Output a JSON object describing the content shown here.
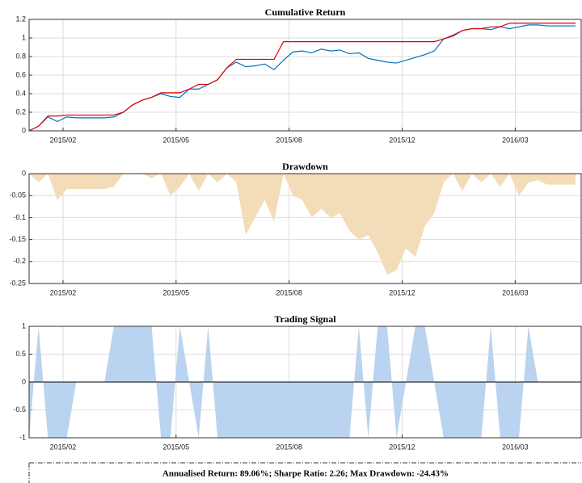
{
  "chart_data": [
    {
      "type": "line",
      "title": "Cumulative Return",
      "x": [
        0,
        5,
        10,
        15,
        20,
        25,
        30,
        35,
        40,
        45,
        50,
        55,
        60,
        65,
        70,
        75,
        80,
        85,
        90,
        95,
        100,
        105,
        110,
        115,
        120,
        125,
        130,
        135,
        140,
        145,
        150,
        155,
        160,
        165,
        170,
        175,
        180,
        185,
        190,
        195,
        200,
        205,
        210,
        215,
        220,
        225,
        230,
        235,
        240,
        245,
        250,
        255,
        260,
        265,
        270,
        275,
        280,
        285,
        290
      ],
      "xlim": [
        0,
        293
      ],
      "xticks": [
        {
          "value": 18,
          "label": "2015/02"
        },
        {
          "value": 78,
          "label": "2015/05"
        },
        {
          "value": 138,
          "label": "2015/08"
        },
        {
          "value": 198,
          "label": "2015/12"
        },
        {
          "value": 258,
          "label": "2016/03"
        }
      ],
      "ylim": [
        0,
        1.2
      ],
      "yticks": [
        0,
        0.2,
        0.4,
        0.6,
        0.8,
        1,
        1.2
      ],
      "grid": true,
      "series": [
        {
          "color": "#0072bd",
          "values": [
            0,
            0.05,
            0.15,
            0.1,
            0.15,
            0.14,
            0.14,
            0.14,
            0.14,
            0.15,
            0.2,
            0.28,
            0.33,
            0.36,
            0.4,
            0.37,
            0.36,
            0.45,
            0.45,
            0.5,
            0.55,
            0.68,
            0.74,
            0.69,
            0.7,
            0.72,
            0.66,
            0.76,
            0.85,
            0.86,
            0.84,
            0.88,
            0.86,
            0.87,
            0.83,
            0.84,
            0.78,
            0.76,
            0.74,
            0.73,
            0.76,
            0.79,
            0.82,
            0.86,
            0.99,
            1.02,
            1.08,
            1.1,
            1.1,
            1.09,
            1.12,
            1.1,
            1.12,
            1.14,
            1.14,
            1.13,
            1.13,
            1.13,
            1.13
          ]
        },
        {
          "color": "#e00000",
          "values": [
            0,
            0.05,
            0.16,
            0.16,
            0.17,
            0.17,
            0.17,
            0.17,
            0.17,
            0.17,
            0.2,
            0.28,
            0.33,
            0.36,
            0.41,
            0.41,
            0.41,
            0.45,
            0.5,
            0.5,
            0.55,
            0.68,
            0.77,
            0.77,
            0.77,
            0.77,
            0.77,
            0.96,
            0.96,
            0.96,
            0.96,
            0.96,
            0.96,
            0.96,
            0.96,
            0.96,
            0.96,
            0.96,
            0.96,
            0.96,
            0.96,
            0.96,
            0.96,
            0.96,
            0.99,
            1.03,
            1.08,
            1.1,
            1.1,
            1.12,
            1.12,
            1.16,
            1.16,
            1.16,
            1.16,
            1.16,
            1.16,
            1.16,
            1.16
          ]
        }
      ]
    },
    {
      "type": "area",
      "title": "Drawdown",
      "x": [
        0,
        5,
        10,
        15,
        20,
        25,
        30,
        35,
        40,
        45,
        50,
        55,
        60,
        65,
        70,
        75,
        80,
        85,
        90,
        95,
        100,
        105,
        110,
        115,
        120,
        125,
        130,
        135,
        140,
        145,
        150,
        155,
        160,
        165,
        170,
        175,
        180,
        185,
        190,
        195,
        200,
        205,
        210,
        215,
        220,
        225,
        230,
        235,
        240,
        245,
        250,
        255,
        260,
        265,
        270,
        275,
        280,
        285,
        290
      ],
      "xlim": [
        0,
        293
      ],
      "xticks": [
        {
          "value": 18,
          "label": "2015/02"
        },
        {
          "value": 78,
          "label": "2015/05"
        },
        {
          "value": 138,
          "label": "2015/08"
        },
        {
          "value": 198,
          "label": "2015/12"
        },
        {
          "value": 258,
          "label": "2016/03"
        }
      ],
      "ylim": [
        -0.25,
        0
      ],
      "yticks": [
        -0.25,
        -0.2,
        -0.15,
        -0.1,
        -0.05,
        0
      ],
      "grid": true,
      "color": "#f3ddb9",
      "values": [
        0,
        -0.02,
        0,
        -0.06,
        -0.035,
        -0.035,
        -0.035,
        -0.035,
        -0.035,
        -0.03,
        0,
        0,
        0,
        -0.01,
        0,
        -0.05,
        -0.03,
        0,
        -0.04,
        0,
        -0.02,
        0,
        -0.02,
        -0.14,
        -0.1,
        -0.06,
        -0.11,
        0,
        -0.05,
        -0.06,
        -0.1,
        -0.08,
        -0.1,
        -0.09,
        -0.13,
        -0.15,
        -0.14,
        -0.18,
        -0.23,
        -0.22,
        -0.17,
        -0.19,
        -0.12,
        -0.09,
        -0.02,
        0,
        -0.04,
        0,
        -0.02,
        0,
        -0.03,
        0,
        -0.05,
        -0.02,
        -0.015,
        -0.025,
        -0.025,
        -0.025,
        -0.025
      ]
    },
    {
      "type": "area",
      "title": "Trading Signal",
      "x": [
        0,
        5,
        10,
        15,
        20,
        25,
        30,
        35,
        40,
        45,
        50,
        55,
        60,
        65,
        70,
        75,
        80,
        85,
        90,
        95,
        100,
        105,
        110,
        115,
        120,
        125,
        130,
        135,
        140,
        145,
        150,
        155,
        160,
        165,
        170,
        175,
        180,
        185,
        190,
        195,
        200,
        205,
        210,
        215,
        220,
        225,
        230,
        235,
        240,
        245,
        250,
        255,
        260,
        265,
        270,
        275,
        280,
        285,
        290
      ],
      "xlim": [
        0,
        293
      ],
      "xticks": [
        {
          "value": 18,
          "label": "2015/02"
        },
        {
          "value": 78,
          "label": "2015/05"
        },
        {
          "value": 138,
          "label": "2015/08"
        },
        {
          "value": 198,
          "label": "2015/12"
        },
        {
          "value": 258,
          "label": "2016/03"
        }
      ],
      "ylim": [
        -1,
        1
      ],
      "yticks": [
        -1,
        -0.5,
        0,
        0.5,
        1
      ],
      "grid": true,
      "zero_line": true,
      "color": "#b9d3f0",
      "values": [
        -1,
        1,
        -1,
        -1,
        -1,
        0,
        0,
        0,
        0,
        1,
        1,
        1,
        1,
        1,
        -1,
        -1,
        1,
        0,
        -1,
        1,
        -1,
        -1,
        -1,
        -1,
        -1,
        -1,
        -1,
        -1,
        -1,
        -1,
        -1,
        -1,
        -1,
        -1,
        -1,
        1,
        -1,
        1,
        1,
        -1,
        0,
        1,
        1,
        0,
        -1,
        -1,
        -1,
        -1,
        -1,
        1,
        -1,
        -1,
        -1,
        1,
        0,
        0,
        0,
        0,
        0
      ]
    }
  ],
  "annotation": "Annualised Return: 89.06%; Sharpe Ratio: 2.26; Max Drawdown: -24.43%"
}
